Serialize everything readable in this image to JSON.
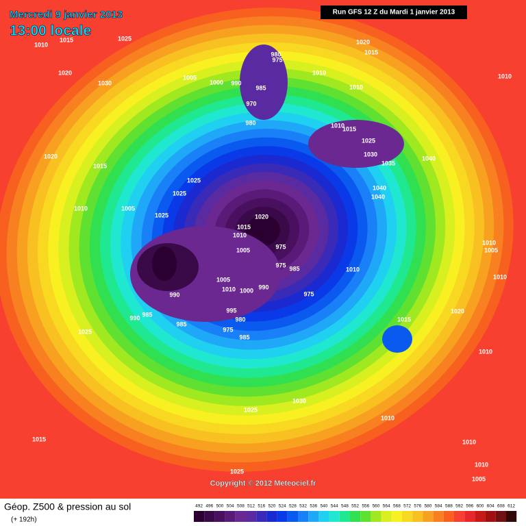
{
  "header": {
    "date": "Mercredi 9 janvier 2013",
    "time": "13:00 locale",
    "run": "Run GFS 12 Z du Mardi 1 janvier 2013"
  },
  "isobar_labels": [
    1010,
    1015,
    1025,
    1020,
    1030,
    1005,
    1000,
    990,
    980,
    975,
    985,
    970,
    980,
    1010,
    1020,
    1015,
    1010,
    1010,
    1010,
    1015,
    1025,
    1030,
    1035,
    1040,
    1040,
    1040,
    1020,
    1015,
    1025,
    1025,
    1010,
    1005,
    1025,
    1020,
    1015,
    1010,
    1005,
    975,
    975,
    985,
    1010,
    1010,
    1005,
    1010,
    1005,
    1010,
    1000,
    990,
    975,
    990,
    985,
    990,
    985,
    995,
    980,
    975,
    985,
    1015,
    1020,
    1025,
    1010,
    1030,
    1025,
    1010,
    1015,
    1010,
    1010,
    1005,
    1025
  ],
  "copyright": "Copyright © 2012 Meteociel.fr",
  "footer": {
    "title": "Géop. Z500 & pression au sol",
    "lead": "(+ 192h)"
  },
  "legend": {
    "ticks": [
      492,
      496,
      500,
      504,
      508,
      512,
      516,
      520,
      524,
      528,
      532,
      536,
      540,
      544,
      548,
      552,
      556,
      560,
      564,
      568,
      572,
      576,
      580,
      584,
      588,
      592,
      596,
      600,
      604,
      608,
      612
    ],
    "colors": [
      "#2b0030",
      "#3a0a48",
      "#4a1060",
      "#5a1a78",
      "#6a2890",
      "#5a2aa0",
      "#3a2ab8",
      "#1a2ad0",
      "#0a3ae8",
      "#0a5af0",
      "#1a80f8",
      "#20a8f8",
      "#20d0f0",
      "#20e8d0",
      "#20e890",
      "#30e050",
      "#60e030",
      "#a0e820",
      "#d8f020",
      "#f8f020",
      "#f8d820",
      "#f8c020",
      "#f8a020",
      "#f88020",
      "#f86020",
      "#f84030",
      "#e82828",
      "#c81818",
      "#a01010",
      "#701010",
      "#300808"
    ]
  }
}
